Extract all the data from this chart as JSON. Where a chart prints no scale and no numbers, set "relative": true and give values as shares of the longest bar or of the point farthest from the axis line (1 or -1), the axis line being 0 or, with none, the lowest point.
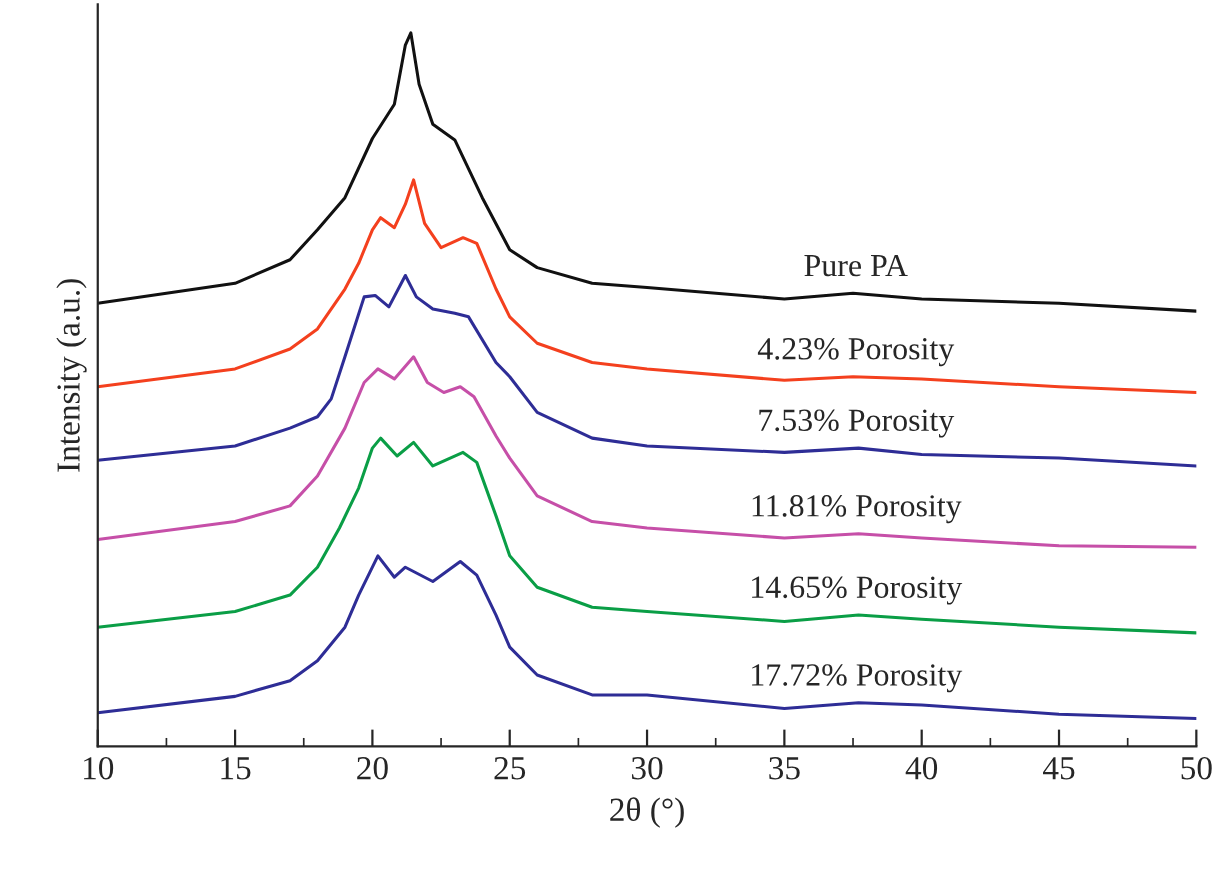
{
  "chart_data": {
    "type": "line",
    "relative": true,
    "xlabel": "2θ (°)",
    "ylabel": "Intensity (a.u.)",
    "xlim": [
      10,
      50
    ],
    "xticks": [
      10,
      15,
      20,
      25,
      30,
      35,
      40,
      45,
      50
    ],
    "grid": false,
    "legend": false,
    "marker": "none",
    "line_style": "solid",
    "series": [
      {
        "name": "Pure PA",
        "color": "#111111",
        "x": [
          10,
          15,
          17,
          18,
          19,
          20,
          20.8,
          21.2,
          21.4,
          21.7,
          22.2,
          23,
          24,
          25,
          26,
          28,
          30,
          35,
          37.5,
          40,
          45,
          50
        ],
        "values": [
          0.621,
          0.649,
          0.682,
          0.724,
          0.769,
          0.852,
          0.9,
          0.983,
          1.0,
          0.928,
          0.872,
          0.85,
          0.769,
          0.696,
          0.671,
          0.649,
          0.643,
          0.627,
          0.635,
          0.627,
          0.621,
          0.61
        ]
      },
      {
        "name": "4.23% Porosity",
        "color": "#f4401e",
        "x": [
          10,
          15,
          17,
          18,
          19,
          19.5,
          20,
          20.3,
          20.8,
          21.2,
          21.5,
          21.9,
          22.5,
          23.3,
          23.8,
          24.5,
          25,
          26,
          28,
          30,
          35,
          37.5,
          40,
          45,
          50
        ],
        "values": [
          0.504,
          0.529,
          0.557,
          0.585,
          0.641,
          0.677,
          0.724,
          0.741,
          0.727,
          0.76,
          0.794,
          0.733,
          0.699,
          0.713,
          0.705,
          0.641,
          0.602,
          0.565,
          0.538,
          0.529,
          0.513,
          0.518,
          0.515,
          0.504,
          0.496
        ]
      },
      {
        "name": "7.53% Porosity",
        "color": "#2e2d96",
        "x": [
          10,
          15,
          17,
          18,
          18.5,
          19,
          19.7,
          20.1,
          20.6,
          21.2,
          21.6,
          22.2,
          23,
          23.5,
          24.5,
          25,
          26,
          28,
          30,
          35,
          37.7,
          40,
          45,
          50
        ],
        "values": [
          0.401,
          0.421,
          0.446,
          0.462,
          0.487,
          0.546,
          0.63,
          0.632,
          0.616,
          0.66,
          0.63,
          0.613,
          0.607,
          0.602,
          0.538,
          0.518,
          0.468,
          0.432,
          0.421,
          0.412,
          0.418,
          0.409,
          0.404,
          0.393
        ]
      },
      {
        "name": "11.81% Porosity",
        "color": "#c64fa8",
        "x": [
          10,
          15,
          17,
          18,
          19,
          19.7,
          20.2,
          20.8,
          21.5,
          22,
          22.6,
          23.2,
          23.7,
          24.5,
          25,
          26,
          28,
          30,
          35,
          37.7,
          40,
          45,
          50
        ],
        "values": [
          0.29,
          0.315,
          0.337,
          0.379,
          0.446,
          0.51,
          0.529,
          0.515,
          0.546,
          0.51,
          0.496,
          0.504,
          0.49,
          0.435,
          0.404,
          0.351,
          0.315,
          0.306,
          0.292,
          0.298,
          0.292,
          0.281,
          0.279
        ]
      },
      {
        "name": "14.65% Porosity",
        "color": "#0a9e46",
        "x": [
          10,
          15,
          17,
          18,
          18.8,
          19.5,
          20,
          20.3,
          20.9,
          21.5,
          22.2,
          23.3,
          23.8,
          24.5,
          25,
          26,
          28,
          30,
          35,
          37.7,
          40,
          45,
          50
        ],
        "values": [
          0.167,
          0.189,
          0.212,
          0.251,
          0.306,
          0.362,
          0.418,
          0.432,
          0.407,
          0.426,
          0.393,
          0.412,
          0.398,
          0.323,
          0.267,
          0.223,
          0.195,
          0.189,
          0.175,
          0.184,
          0.178,
          0.167,
          0.159
        ]
      },
      {
        "name": "17.72% Porosity",
        "color": "#2e2d96",
        "x": [
          10,
          15,
          17,
          18,
          19,
          19.5,
          20.2,
          20.8,
          21.2,
          22.2,
          23.2,
          23.8,
          24.5,
          25,
          26,
          28,
          30,
          35,
          37.7,
          40,
          45,
          50
        ],
        "values": [
          0.047,
          0.07,
          0.092,
          0.12,
          0.167,
          0.212,
          0.267,
          0.237,
          0.251,
          0.231,
          0.259,
          0.24,
          0.184,
          0.139,
          0.1,
          0.072,
          0.072,
          0.053,
          0.061,
          0.058,
          0.045,
          0.039
        ]
      }
    ]
  }
}
